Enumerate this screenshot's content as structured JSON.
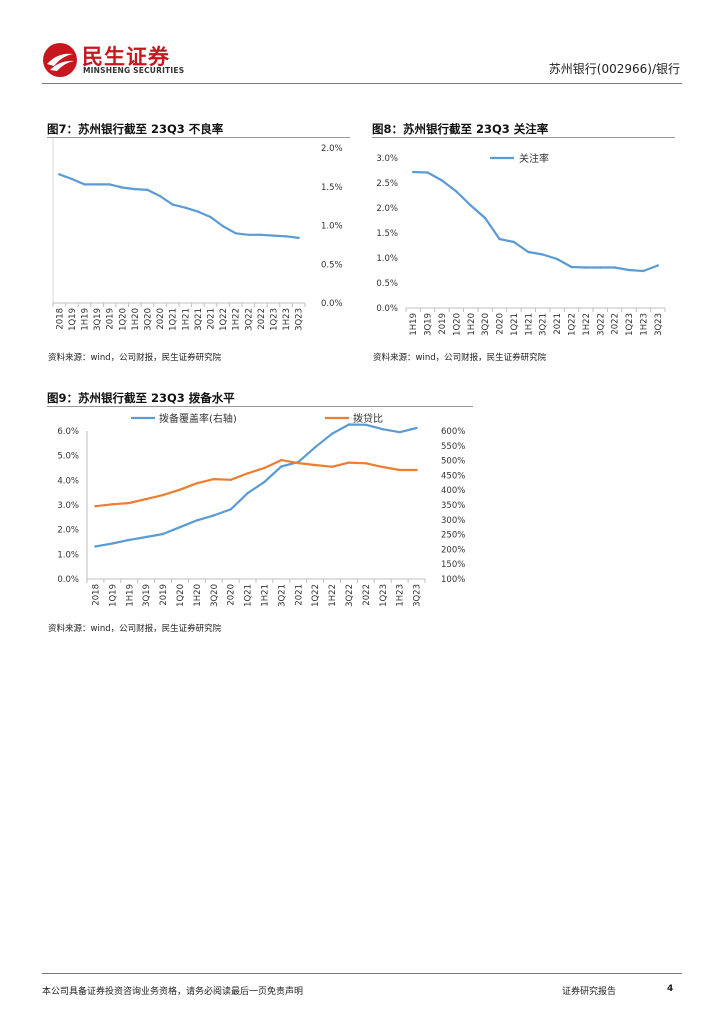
{
  "header": {
    "logo_cn": "民生证券",
    "logo_en": "MINSHENG SECURITIES",
    "report_label": "苏州银行(002966)/银行"
  },
  "colors": {
    "brand": "#c8161e",
    "blue": "#5b9bd5",
    "orange": "#ed7d31"
  },
  "figures": [
    {
      "title": "图7：苏州银行截至 23Q3 不良率",
      "source": "资料来源：wind，公司财报，民生证券研究院"
    },
    {
      "title": "图8：苏州银行截至 23Q3 关注率",
      "source": "资料来源：wind，公司财报，民生证券研究院"
    },
    {
      "title": "图9：苏州银行截至 23Q3 拨备水平",
      "source": "资料来源：wind，公司财报，民生证券研究院"
    }
  ],
  "chart_data": [
    {
      "id": "fig7",
      "type": "line",
      "title": "苏州银行截至 23Q3 不良率",
      "categories": [
        "2018",
        "1Q19",
        "1H19",
        "3Q19",
        "2019",
        "1Q20",
        "1H20",
        "3Q20",
        "2020",
        "1Q21",
        "1H21",
        "3Q21",
        "2021",
        "1Q22",
        "1H22",
        "3Q22",
        "2022",
        "1Q23",
        "1H23",
        "3Q23"
      ],
      "series": [
        {
          "name": "不良率",
          "color": "#5b9bd5",
          "values": [
            1.66,
            1.6,
            1.53,
            1.53,
            1.53,
            1.49,
            1.47,
            1.46,
            1.38,
            1.27,
            1.23,
            1.18,
            1.11,
            0.99,
            0.9,
            0.88,
            0.88,
            0.87,
            0.86,
            0.84
          ]
        }
      ],
      "y_axis": "right",
      "ylim": [
        0,
        2.0
      ],
      "yticks": [
        "0.0%",
        "0.5%",
        "1.0%",
        "1.5%",
        "2.0%"
      ],
      "legend": []
    },
    {
      "id": "fig8",
      "type": "line",
      "title": "苏州银行截至 23Q3 关注率",
      "categories": [
        "1H19",
        "3Q19",
        "2019",
        "1Q20",
        "1H20",
        "3Q20",
        "2020",
        "1Q21",
        "1H21",
        "3Q21",
        "2021",
        "1Q22",
        "1H22",
        "3Q22",
        "2022",
        "1Q23",
        "1H23",
        "3Q23"
      ],
      "series": [
        {
          "name": "关注率",
          "color": "#5b9bd5",
          "values": [
            2.72,
            2.71,
            2.55,
            2.33,
            2.05,
            1.8,
            1.38,
            1.32,
            1.12,
            1.07,
            0.98,
            0.82,
            0.81,
            0.81,
            0.81,
            0.76,
            0.74,
            0.85
          ]
        }
      ],
      "y_axis": "left",
      "ylim": [
        0,
        3.0
      ],
      "yticks": [
        "0.0%",
        "0.5%",
        "1.0%",
        "1.5%",
        "2.0%",
        "2.5%",
        "3.0%"
      ],
      "legend": [
        "关注率"
      ]
    },
    {
      "id": "fig9",
      "type": "line",
      "title": "苏州银行截至 23Q3 拨备水平",
      "categories": [
        "2018",
        "1Q19",
        "1H19",
        "3Q19",
        "2019",
        "1Q20",
        "1H20",
        "3Q20",
        "2020",
        "1Q21",
        "1H21",
        "3Q21",
        "2021",
        "1Q22",
        "1H22",
        "3Q22",
        "2022",
        "1Q23",
        "1H23",
        "3Q23"
      ],
      "series": [
        {
          "name": "拨备覆盖率(右轴)",
          "color": "#5b9bd5",
          "axis": "right",
          "values": [
            210,
            220,
            232,
            242,
            252,
            275,
            298,
            315,
            335,
            390,
            428,
            480,
            495,
            545,
            591,
            622,
            621,
            606,
            596,
            610
          ]
        },
        {
          "name": "拨贷比",
          "color": "#ed7d31",
          "axis": "left",
          "values": [
            2.95,
            3.03,
            3.08,
            3.24,
            3.4,
            3.62,
            3.88,
            4.05,
            4.02,
            4.28,
            4.5,
            4.82,
            4.7,
            4.62,
            4.55,
            4.72,
            4.69,
            4.54,
            4.42,
            4.42
          ]
        }
      ],
      "ylim_left": [
        0,
        6.0
      ],
      "ylim_right": [
        100,
        600
      ],
      "yticks_left": [
        "0.0%",
        "1.0%",
        "2.0%",
        "3.0%",
        "4.0%",
        "5.0%",
        "6.0%"
      ],
      "yticks_right": [
        "100%",
        "150%",
        "200%",
        "250%",
        "300%",
        "350%",
        "400%",
        "450%",
        "500%",
        "550%",
        "600%"
      ],
      "legend": [
        "拨备覆盖率(右轴)",
        "拨贷比"
      ]
    }
  ],
  "footer": {
    "disclaimer": "本公司具备证券投资咨询业务资格，请务必阅读最后一页免责声明",
    "type": "证券研究报告",
    "page": "4"
  }
}
